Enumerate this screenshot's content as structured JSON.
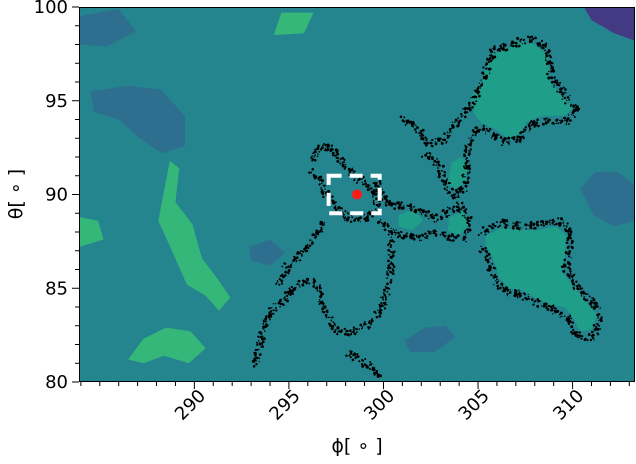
{
  "chart_data": {
    "type": "heatmap",
    "title": "",
    "xlabel": "ϕ[ ∘ ]",
    "ylabel": "θ[ ∘ ]",
    "xlim": [
      283.9,
      313.3
    ],
    "ylim": [
      80,
      100
    ],
    "x_ticks": [
      290,
      295,
      300,
      305,
      310
    ],
    "x_tick_labels": [
      "290",
      "295",
      "300",
      "305",
      "310"
    ],
    "y_ticks": [
      80,
      85,
      90,
      95,
      100
    ],
    "y_tick_labels": [
      "80",
      "85",
      "90",
      "95",
      "100"
    ],
    "colormap": [
      "#2e6e8e",
      "#25858e",
      "#1f9e89",
      "#35b779",
      "#4ac16d",
      "#3e4a89",
      "#443a83"
    ],
    "marker": {
      "x": 298.6,
      "y": 90.0,
      "color": "#ff1a1a"
    },
    "selection_box": {
      "x": [
        297.1,
        299.8
      ],
      "y": [
        89.0,
        91.0
      ],
      "color": "#ffffff",
      "style": "dashed"
    },
    "scatter_color": "#000000",
    "regions": [
      {
        "name": "teal-island-upper-right",
        "level": "high",
        "points": [
          [
            304.6,
            95.2
          ],
          [
            305.2,
            96.0
          ],
          [
            305.7,
            97.5
          ],
          [
            306.6,
            97.8
          ],
          [
            307.1,
            98.2
          ],
          [
            308.0,
            98.0
          ],
          [
            308.7,
            97.4
          ],
          [
            308.8,
            96.0
          ],
          [
            309.6,
            95.1
          ],
          [
            310.0,
            94.6
          ],
          [
            309.6,
            94.2
          ],
          [
            308.4,
            94.2
          ],
          [
            307.6,
            93.9
          ],
          [
            307.2,
            93.2
          ],
          [
            306.6,
            93.0
          ],
          [
            305.9,
            93.5
          ],
          [
            305.2,
            93.8
          ],
          [
            304.8,
            94.3
          ]
        ]
      },
      {
        "name": "teal-island-lower-right",
        "level": "high",
        "points": [
          [
            305.4,
            87.8
          ],
          [
            306.2,
            88.2
          ],
          [
            307.2,
            88.1
          ],
          [
            308.2,
            88.1
          ],
          [
            309.1,
            88.3
          ],
          [
            309.7,
            87.8
          ],
          [
            309.6,
            86.8
          ],
          [
            309.4,
            85.9
          ],
          [
            310.0,
            85.2
          ],
          [
            310.7,
            84.3
          ],
          [
            311.3,
            83.6
          ],
          [
            311.0,
            82.8
          ],
          [
            310.4,
            82.7
          ],
          [
            310.1,
            83.3
          ],
          [
            309.6,
            84.0
          ],
          [
            308.8,
            84.1
          ],
          [
            308.0,
            84.5
          ],
          [
            307.3,
            84.9
          ],
          [
            306.6,
            85.0
          ],
          [
            306.1,
            85.6
          ],
          [
            305.8,
            86.6
          ],
          [
            305.4,
            87.3
          ]
        ]
      },
      {
        "name": "teal-blob-center-a",
        "level": "high",
        "points": [
          [
            303.6,
            91.7
          ],
          [
            304.1,
            92.0
          ],
          [
            304.5,
            91.6
          ],
          [
            304.3,
            90.7
          ],
          [
            303.8,
            90.2
          ],
          [
            303.4,
            90.6
          ]
        ]
      },
      {
        "name": "teal-blob-center-b",
        "level": "high",
        "points": [
          [
            303.5,
            88.8
          ],
          [
            304.2,
            89.1
          ],
          [
            304.5,
            88.4
          ],
          [
            304.0,
            87.8
          ],
          [
            303.4,
            88.1
          ]
        ]
      },
      {
        "name": "teal-blob-center-c",
        "level": "high",
        "points": [
          [
            300.8,
            88.9
          ],
          [
            301.6,
            89.2
          ],
          [
            302.1,
            88.6
          ],
          [
            301.5,
            88.1
          ],
          [
            300.8,
            88.3
          ]
        ]
      },
      {
        "name": "green-patch-left",
        "level": "higher",
        "points": [
          [
            288.1,
            88.6
          ],
          [
            288.7,
            91.8
          ],
          [
            289.2,
            91.4
          ],
          [
            289.0,
            89.6
          ],
          [
            289.9,
            88.4
          ],
          [
            290.4,
            86.6
          ],
          [
            291.3,
            85.4
          ],
          [
            291.9,
            84.5
          ],
          [
            291.3,
            83.8
          ],
          [
            290.6,
            84.6
          ],
          [
            289.6,
            85.2
          ],
          [
            288.9,
            86.8
          ]
        ]
      },
      {
        "name": "green-patch-top",
        "level": "higher",
        "points": [
          [
            294.6,
            99.7
          ],
          [
            294.2,
            98.5
          ],
          [
            295.8,
            98.6
          ],
          [
            296.3,
            99.7
          ]
        ]
      },
      {
        "name": "green-patch-bottom",
        "level": "higher",
        "points": [
          [
            286.5,
            81.2
          ],
          [
            287.3,
            82.3
          ],
          [
            288.5,
            82.9
          ],
          [
            289.8,
            82.7
          ],
          [
            290.6,
            81.8
          ],
          [
            289.7,
            81.0
          ],
          [
            288.4,
            81.4
          ],
          [
            287.3,
            81.0
          ]
        ]
      },
      {
        "name": "green-patch-edge",
        "level": "higher",
        "points": [
          [
            283.9,
            88.8
          ],
          [
            284.9,
            88.6
          ],
          [
            285.2,
            87.6
          ],
          [
            283.9,
            87.2
          ]
        ]
      },
      {
        "name": "dark-patch-top-left",
        "level": "low",
        "points": [
          [
            283.9,
            99.5
          ],
          [
            286.0,
            99.9
          ],
          [
            286.9,
            98.7
          ],
          [
            285.4,
            97.9
          ],
          [
            283.9,
            98.0
          ]
        ]
      },
      {
        "name": "dark-patch-left",
        "level": "low",
        "points": [
          [
            284.5,
            95.5
          ],
          [
            286.5,
            95.8
          ],
          [
            288.2,
            95.6
          ],
          [
            289.5,
            94.2
          ],
          [
            289.5,
            92.6
          ],
          [
            288.3,
            92.2
          ],
          [
            287.1,
            93.0
          ],
          [
            286.0,
            94.0
          ],
          [
            284.7,
            94.4
          ]
        ]
      },
      {
        "name": "dark-patch-top-right",
        "level": "lowest",
        "points": [
          [
            310.6,
            100
          ],
          [
            313.3,
            100
          ],
          [
            313.3,
            98.2
          ],
          [
            312.2,
            98.6
          ],
          [
            311.0,
            99.3
          ]
        ]
      },
      {
        "name": "dark-patch-right",
        "level": "low",
        "points": [
          [
            310.4,
            90.3
          ],
          [
            311.2,
            91.2
          ],
          [
            312.4,
            91.2
          ],
          [
            313.3,
            90.5
          ],
          [
            313.3,
            88.6
          ],
          [
            312.2,
            88.3
          ],
          [
            311.1,
            88.9
          ]
        ]
      },
      {
        "name": "dark-patch-bottom-center",
        "level": "low",
        "points": [
          [
            301.1,
            82.2
          ],
          [
            302.2,
            82.9
          ],
          [
            303.3,
            83.0
          ],
          [
            303.8,
            82.4
          ],
          [
            302.7,
            81.6
          ],
          [
            301.4,
            81.6
          ]
        ]
      },
      {
        "name": "dark-patch-center",
        "level": "low",
        "points": [
          [
            292.9,
            87.2
          ],
          [
            294.0,
            87.6
          ],
          [
            294.8,
            86.9
          ],
          [
            294.0,
            86.2
          ],
          [
            293.0,
            86.5
          ]
        ]
      }
    ],
    "scatter_outlines": [
      [
        [
          296.2,
          91.8
        ],
        [
          296.6,
          92.6
        ],
        [
          297.3,
          92.4
        ],
        [
          297.9,
          91.6
        ],
        [
          298.5,
          91.0
        ],
        [
          299.1,
          90.5
        ],
        [
          299.6,
          90.1
        ],
        [
          299.7,
          89.3
        ],
        [
          299.2,
          88.8
        ],
        [
          298.6,
          88.7
        ],
        [
          298.0,
          88.8
        ],
        [
          297.5,
          89.4
        ],
        [
          297.0,
          90.0
        ],
        [
          296.6,
          90.8
        ],
        [
          296.2,
          91.2
        ]
      ],
      [
        [
          301.0,
          94.1
        ],
        [
          301.7,
          93.6
        ],
        [
          302.4,
          92.7
        ],
        [
          303.3,
          92.9
        ],
        [
          303.9,
          93.9
        ],
        [
          304.7,
          94.9
        ],
        [
          305.3,
          96.1
        ],
        [
          305.8,
          97.7
        ],
        [
          306.8,
          98.0
        ],
        [
          307.7,
          98.3
        ],
        [
          308.6,
          97.8
        ],
        [
          308.9,
          96.3
        ],
        [
          309.6,
          95.2
        ],
        [
          310.2,
          94.6
        ],
        [
          309.7,
          93.9
        ],
        [
          308.6,
          94.0
        ],
        [
          307.7,
          93.7
        ],
        [
          307.2,
          93.0
        ],
        [
          306.4,
          92.8
        ],
        [
          305.6,
          93.3
        ],
        [
          305.0,
          93.6
        ],
        [
          304.5,
          92.8
        ],
        [
          304.4,
          91.5
        ],
        [
          304.3,
          90.4
        ],
        [
          303.7,
          89.9
        ],
        [
          303.2,
          90.8
        ],
        [
          302.9,
          91.6
        ],
        [
          302.2,
          92.2
        ]
      ],
      [
        [
          299.6,
          90.7
        ],
        [
          300.4,
          89.4
        ],
        [
          301.3,
          89.4
        ],
        [
          302.1,
          89.0
        ],
        [
          302.8,
          88.7
        ],
        [
          303.4,
          89.1
        ],
        [
          304.1,
          89.4
        ],
        [
          304.6,
          88.5
        ],
        [
          304.2,
          87.6
        ],
        [
          303.5,
          87.7
        ],
        [
          302.7,
          88.0
        ],
        [
          302.0,
          87.7
        ],
        [
          301.3,
          87.7
        ],
        [
          300.5,
          88.0
        ],
        [
          299.8,
          88.6
        ]
      ],
      [
        [
          305.2,
          88.0
        ],
        [
          306.2,
          88.5
        ],
        [
          307.3,
          88.3
        ],
        [
          308.4,
          88.4
        ],
        [
          309.3,
          88.6
        ],
        [
          309.9,
          87.9
        ],
        [
          309.8,
          86.8
        ],
        [
          309.6,
          86.0
        ],
        [
          310.2,
          85.2
        ],
        [
          311.0,
          84.3
        ],
        [
          311.5,
          83.5
        ],
        [
          311.1,
          82.4
        ],
        [
          310.3,
          82.4
        ],
        [
          309.7,
          83.5
        ],
        [
          308.9,
          83.9
        ],
        [
          308.0,
          84.3
        ],
        [
          307.2,
          84.7
        ],
        [
          306.4,
          84.8
        ],
        [
          305.9,
          85.5
        ],
        [
          305.5,
          86.6
        ],
        [
          305.2,
          87.2
        ]
      ],
      [
        [
          300.4,
          87.6
        ],
        [
          300.4,
          86.2
        ],
        [
          300.3,
          85.2
        ],
        [
          300.0,
          84.2
        ],
        [
          299.5,
          83.3
        ],
        [
          298.9,
          82.8
        ],
        [
          298.1,
          82.6
        ],
        [
          297.5,
          82.8
        ],
        [
          297.1,
          83.4
        ],
        [
          296.8,
          84.0
        ],
        [
          296.7,
          84.6
        ],
        [
          296.4,
          85.4
        ],
        [
          295.6,
          85.3
        ],
        [
          294.8,
          84.5
        ],
        [
          294.0,
          83.8
        ],
        [
          293.6,
          82.8
        ],
        [
          293.4,
          81.8
        ],
        [
          293.2,
          81.0
        ]
      ],
      [
        [
          298.2,
          81.6
        ],
        [
          298.9,
          81.1
        ],
        [
          299.5,
          80.6
        ],
        [
          299.8,
          80.1
        ]
      ],
      [
        [
          296.8,
          88.5
        ],
        [
          296.2,
          87.5
        ],
        [
          295.6,
          86.8
        ],
        [
          294.9,
          86.1
        ],
        [
          294.3,
          85.1
        ]
      ]
    ]
  }
}
